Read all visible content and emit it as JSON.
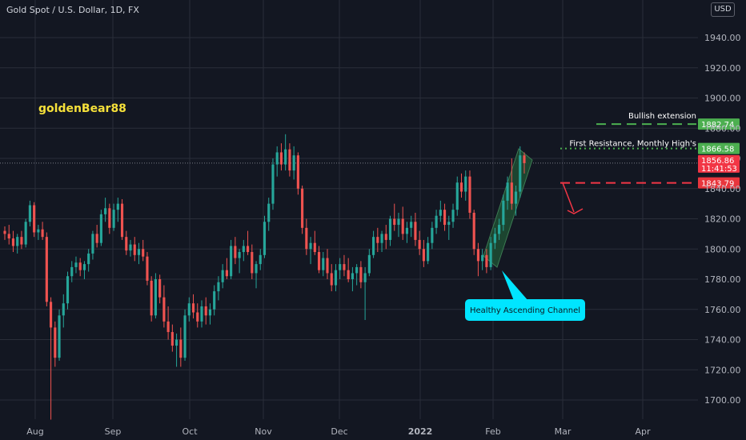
{
  "header": {
    "symbol_title": "Gold Spot / U.S. Dollar, 1D, FX",
    "currency": "USD"
  },
  "watermark": "goldenBear88",
  "colors": {
    "background": "#131722",
    "grid": "#2a2e39",
    "up": "#26a69a",
    "down": "#ef5350",
    "resistance_green": "#4caf50",
    "support_red": "#f23645",
    "channel_fill": "#1e4d33",
    "callout": "#00e5ff",
    "watermark": "#f5e03a"
  },
  "chart_data": {
    "type": "candlestick",
    "title": "Gold Spot / U.S. Dollar, 1D, FX",
    "ylim": [
      1685,
      1950
    ],
    "y_ticks": [
      1700,
      1720,
      1740,
      1760,
      1780,
      1800,
      1820,
      1840,
      1860,
      1880,
      1900,
      1920,
      1940
    ],
    "y_tick_labels": [
      "1700.00",
      "1720.00",
      "1740.00",
      "1760.00",
      "1780.00",
      "1800.00",
      "1820.00",
      "1840.00",
      "1860.00",
      "1880.00",
      "1900.00",
      "1920.00",
      "1940.00"
    ],
    "x_ticks": [
      "Aug",
      "Sep",
      "Oct",
      "Nov",
      "Dec",
      "2022",
      "Feb",
      "Mar",
      "Apr"
    ],
    "grid": true,
    "price_levels": [
      {
        "name": "Bullish extension",
        "value": 1882.74,
        "label": "1882.74",
        "style": "dashed",
        "color": "#4caf50"
      },
      {
        "name": "First Resistance, Monthly High's",
        "value": 1866.58,
        "label": "1866.58",
        "style": "dotted",
        "color": "#4caf50"
      },
      {
        "name": "",
        "value": 1843.79,
        "label": "1843.79",
        "style": "dashed",
        "color": "#f23645"
      }
    ],
    "last_price": {
      "value": 1856.86,
      "label": "1856.86",
      "countdown": "11:41:53"
    },
    "callout": "Healthy Ascending Channel",
    "candles": [
      [
        1812,
        1815,
        1806,
        1810
      ],
      [
        1810,
        1816,
        1803,
        1807
      ],
      [
        1807,
        1812,
        1798,
        1802
      ],
      [
        1802,
        1810,
        1797,
        1808
      ],
      [
        1808,
        1812,
        1800,
        1803
      ],
      [
        1803,
        1820,
        1801,
        1818
      ],
      [
        1818,
        1832,
        1815,
        1829
      ],
      [
        1829,
        1831,
        1808,
        1811
      ],
      [
        1811,
        1816,
        1806,
        1813
      ],
      [
        1813,
        1818,
        1806,
        1808
      ],
      [
        1808,
        1811,
        1762,
        1765
      ],
      [
        1765,
        1768,
        1687,
        1748
      ],
      [
        1748,
        1752,
        1722,
        1728
      ],
      [
        1728,
        1760,
        1726,
        1756
      ],
      [
        1756,
        1770,
        1748,
        1764
      ],
      [
        1764,
        1785,
        1760,
        1782
      ],
      [
        1782,
        1792,
        1778,
        1788
      ],
      [
        1788,
        1795,
        1784,
        1791
      ],
      [
        1791,
        1794,
        1782,
        1786
      ],
      [
        1786,
        1792,
        1780,
        1790
      ],
      [
        1790,
        1800,
        1785,
        1797
      ],
      [
        1797,
        1812,
        1793,
        1810
      ],
      [
        1810,
        1816,
        1801,
        1804
      ],
      [
        1804,
        1826,
        1802,
        1823
      ],
      [
        1823,
        1834,
        1818,
        1827
      ],
      [
        1827,
        1830,
        1810,
        1814
      ],
      [
        1814,
        1830,
        1812,
        1826
      ],
      [
        1826,
        1834,
        1818,
        1830
      ],
      [
        1830,
        1833,
        1806,
        1808
      ],
      [
        1808,
        1812,
        1796,
        1799
      ],
      [
        1799,
        1806,
        1795,
        1803
      ],
      [
        1803,
        1808,
        1792,
        1796
      ],
      [
        1796,
        1804,
        1790,
        1800
      ],
      [
        1800,
        1806,
        1792,
        1795
      ],
      [
        1795,
        1798,
        1776,
        1779
      ],
      [
        1779,
        1782,
        1752,
        1756
      ],
      [
        1756,
        1784,
        1754,
        1780
      ],
      [
        1780,
        1783,
        1764,
        1768
      ],
      [
        1768,
        1776,
        1748,
        1752
      ],
      [
        1752,
        1762,
        1740,
        1745
      ],
      [
        1745,
        1750,
        1732,
        1736
      ],
      [
        1736,
        1744,
        1722,
        1740
      ],
      [
        1740,
        1748,
        1722,
        1728
      ],
      [
        1728,
        1760,
        1726,
        1756
      ],
      [
        1756,
        1768,
        1752,
        1764
      ],
      [
        1764,
        1770,
        1754,
        1758
      ],
      [
        1758,
        1764,
        1748,
        1752
      ],
      [
        1752,
        1766,
        1748,
        1762
      ],
      [
        1762,
        1768,
        1750,
        1756
      ],
      [
        1756,
        1764,
        1750,
        1760
      ],
      [
        1760,
        1776,
        1756,
        1772
      ],
      [
        1772,
        1782,
        1766,
        1778
      ],
      [
        1778,
        1790,
        1774,
        1786
      ],
      [
        1786,
        1794,
        1780,
        1782
      ],
      [
        1782,
        1806,
        1780,
        1802
      ],
      [
        1802,
        1808,
        1790,
        1794
      ],
      [
        1794,
        1800,
        1784,
        1798
      ],
      [
        1798,
        1806,
        1792,
        1802
      ],
      [
        1802,
        1812,
        1796,
        1798
      ],
      [
        1798,
        1803,
        1780,
        1784
      ],
      [
        1784,
        1792,
        1774,
        1790
      ],
      [
        1790,
        1800,
        1786,
        1796
      ],
      [
        1796,
        1822,
        1794,
        1818
      ],
      [
        1818,
        1834,
        1812,
        1830
      ],
      [
        1830,
        1860,
        1826,
        1856
      ],
      [
        1856,
        1868,
        1848,
        1864
      ],
      [
        1864,
        1870,
        1852,
        1856
      ],
      [
        1856,
        1876,
        1852,
        1866
      ],
      [
        1866,
        1870,
        1848,
        1852
      ],
      [
        1852,
        1868,
        1846,
        1862
      ],
      [
        1862,
        1864,
        1836,
        1840
      ],
      [
        1840,
        1842,
        1810,
        1814
      ],
      [
        1814,
        1820,
        1796,
        1800
      ],
      [
        1800,
        1808,
        1790,
        1804
      ],
      [
        1804,
        1812,
        1796,
        1798
      ],
      [
        1798,
        1802,
        1784,
        1786
      ],
      [
        1786,
        1798,
        1782,
        1794
      ],
      [
        1794,
        1800,
        1780,
        1784
      ],
      [
        1784,
        1790,
        1772,
        1776
      ],
      [
        1776,
        1790,
        1772,
        1786
      ],
      [
        1786,
        1794,
        1780,
        1790
      ],
      [
        1790,
        1796,
        1782,
        1786
      ],
      [
        1786,
        1794,
        1778,
        1780
      ],
      [
        1780,
        1788,
        1772,
        1784
      ],
      [
        1784,
        1790,
        1776,
        1788
      ],
      [
        1788,
        1792,
        1774,
        1778
      ],
      [
        1778,
        1788,
        1753,
        1784
      ],
      [
        1784,
        1800,
        1782,
        1796
      ],
      [
        1796,
        1812,
        1794,
        1808
      ],
      [
        1808,
        1814,
        1798,
        1804
      ],
      [
        1804,
        1812,
        1798,
        1810
      ],
      [
        1810,
        1816,
        1800,
        1806
      ],
      [
        1806,
        1822,
        1802,
        1820
      ],
      [
        1820,
        1830,
        1812,
        1816
      ],
      [
        1816,
        1824,
        1808,
        1820
      ],
      [
        1820,
        1828,
        1806,
        1810
      ],
      [
        1810,
        1818,
        1804,
        1814
      ],
      [
        1814,
        1822,
        1808,
        1818
      ],
      [
        1818,
        1824,
        1802,
        1806
      ],
      [
        1806,
        1812,
        1796,
        1800
      ],
      [
        1800,
        1806,
        1788,
        1792
      ],
      [
        1792,
        1808,
        1790,
        1804
      ],
      [
        1804,
        1818,
        1800,
        1814
      ],
      [
        1814,
        1826,
        1810,
        1822
      ],
      [
        1822,
        1832,
        1818,
        1826
      ],
      [
        1826,
        1830,
        1812,
        1816
      ],
      [
        1816,
        1822,
        1806,
        1818
      ],
      [
        1818,
        1830,
        1814,
        1826
      ],
      [
        1826,
        1848,
        1822,
        1844
      ],
      [
        1844,
        1850,
        1834,
        1838
      ],
      [
        1838,
        1852,
        1832,
        1848
      ],
      [
        1848,
        1852,
        1820,
        1824
      ],
      [
        1824,
        1826,
        1796,
        1800
      ],
      [
        1800,
        1804,
        1782,
        1792
      ],
      [
        1792,
        1800,
        1786,
        1796
      ],
      [
        1796,
        1800,
        1784,
        1788
      ],
      [
        1788,
        1808,
        1786,
        1804
      ],
      [
        1804,
        1814,
        1800,
        1810
      ],
      [
        1810,
        1820,
        1806,
        1816
      ],
      [
        1816,
        1836,
        1812,
        1832
      ],
      [
        1832,
        1848,
        1826,
        1844
      ],
      [
        1844,
        1860,
        1826,
        1830
      ],
      [
        1830,
        1842,
        1822,
        1838
      ],
      [
        1838,
        1868,
        1834,
        1862
      ],
      [
        1862,
        1864,
        1850,
        1856.86
      ]
    ]
  },
  "overlay_labels": {
    "bullish_extension": "Bullish extension",
    "first_resistance": "First Resistance, Monthly High's"
  }
}
